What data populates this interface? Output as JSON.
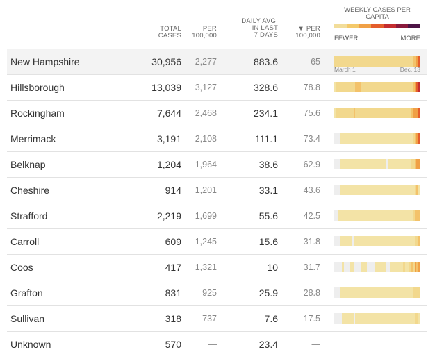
{
  "header": {
    "total_cases": [
      "TOTAL",
      "CASES"
    ],
    "per_100k": [
      "PER",
      "100,000"
    ],
    "daily_avg": [
      "DAILY AVG.",
      "IN LAST",
      "7 DAYS"
    ],
    "per_100k_sorted": [
      "▼ PER",
      "100,000"
    ]
  },
  "legend": {
    "title": [
      "WEEKLY CASES PER",
      "CAPITA"
    ],
    "fewer": "FEWER",
    "more": "MORE",
    "colors": [
      "#f2dd9a",
      "#f4c96a",
      "#f0a046",
      "#e45d2b",
      "#c42d2f",
      "#8a1a3c",
      "#4d1546"
    ]
  },
  "axis": {
    "start": "March 1",
    "end": "Dec. 13"
  },
  "rows": [
    {
      "name": "New Hampshire",
      "total": "30,956",
      "per100k": "2,277",
      "daily": "883.6",
      "per100k_daily": "65",
      "spark": [
        2,
        2,
        2,
        2,
        2,
        2,
        2,
        2,
        2,
        2,
        2,
        2,
        2,
        2,
        2,
        2,
        2,
        2,
        2,
        2,
        2,
        2,
        2,
        2,
        2,
        2,
        2,
        2,
        2,
        2,
        2,
        2,
        2,
        2,
        2,
        2,
        2,
        2,
        2,
        2,
        2,
        3,
        3,
        4,
        5
      ]
    },
    {
      "name": "Hillsborough",
      "total": "13,039",
      "per100k": "3,127",
      "daily": "328.6",
      "per100k_daily": "78.8",
      "spark": [
        1,
        2,
        2,
        2,
        2,
        2,
        2,
        2,
        2,
        2,
        2,
        3,
        3,
        3,
        2,
        2,
        2,
        2,
        2,
        2,
        2,
        2,
        2,
        2,
        2,
        2,
        2,
        2,
        2,
        2,
        2,
        2,
        2,
        2,
        2,
        2,
        2,
        2,
        2,
        2,
        2,
        3,
        4,
        5,
        6
      ]
    },
    {
      "name": "Rockingham",
      "total": "7,644",
      "per100k": "2,468",
      "daily": "234.1",
      "per100k_daily": "75.6",
      "spark": [
        1,
        2,
        2,
        2,
        2,
        2,
        2,
        2,
        2,
        2,
        3,
        2,
        2,
        2,
        2,
        2,
        2,
        2,
        2,
        2,
        2,
        2,
        2,
        2,
        2,
        2,
        2,
        2,
        2,
        2,
        2,
        2,
        2,
        2,
        2,
        2,
        2,
        2,
        2,
        2,
        3,
        4,
        4,
        4,
        5
      ]
    },
    {
      "name": "Merrimack",
      "total": "3,191",
      "per100k": "2,108",
      "daily": "111.1",
      "per100k_daily": "73.4",
      "spark": [
        0,
        0,
        0,
        1,
        1,
        1,
        1,
        1,
        1,
        1,
        1,
        1,
        1,
        1,
        1,
        1,
        1,
        1,
        1,
        1,
        1,
        1,
        1,
        1,
        1,
        1,
        1,
        1,
        1,
        1,
        1,
        1,
        1,
        1,
        1,
        1,
        1,
        1,
        1,
        1,
        1,
        2,
        3,
        4,
        5
      ]
    },
    {
      "name": "Belknap",
      "total": "1,204",
      "per100k": "1,964",
      "daily": "38.6",
      "per100k_daily": "62.9",
      "spark": [
        0,
        0,
        0,
        1,
        1,
        1,
        1,
        1,
        1,
        1,
        1,
        1,
        1,
        1,
        1,
        1,
        1,
        1,
        1,
        1,
        1,
        1,
        1,
        1,
        1,
        1,
        1,
        0,
        1,
        1,
        1,
        1,
        1,
        1,
        1,
        1,
        1,
        1,
        1,
        1,
        2,
        2,
        3,
        4,
        4
      ]
    },
    {
      "name": "Cheshire",
      "total": "914",
      "per100k": "1,201",
      "daily": "33.1",
      "per100k_daily": "43.6",
      "spark": [
        0,
        0,
        0,
        1,
        1,
        1,
        1,
        1,
        1,
        1,
        1,
        1,
        1,
        1,
        1,
        1,
        1,
        1,
        1,
        1,
        1,
        1,
        1,
        1,
        1,
        1,
        1,
        1,
        1,
        1,
        1,
        1,
        1,
        1,
        1,
        1,
        1,
        1,
        1,
        1,
        1,
        1,
        2,
        3,
        1
      ]
    },
    {
      "name": "Strafford",
      "total": "2,219",
      "per100k": "1,699",
      "daily": "55.6",
      "per100k_daily": "42.5",
      "spark": [
        0,
        0,
        1,
        1,
        1,
        1,
        1,
        1,
        1,
        1,
        1,
        1,
        1,
        1,
        1,
        1,
        1,
        1,
        1,
        1,
        1,
        1,
        1,
        1,
        1,
        1,
        1,
        1,
        1,
        1,
        1,
        1,
        1,
        1,
        1,
        1,
        1,
        1,
        1,
        1,
        1,
        2,
        3,
        3,
        3
      ]
    },
    {
      "name": "Carroll",
      "total": "609",
      "per100k": "1,245",
      "daily": "15.6",
      "per100k_daily": "31.8",
      "spark": [
        0,
        0,
        0,
        1,
        1,
        1,
        1,
        1,
        1,
        0,
        1,
        1,
        1,
        1,
        1,
        1,
        1,
        1,
        1,
        1,
        1,
        1,
        1,
        1,
        1,
        1,
        1,
        1,
        1,
        1,
        1,
        1,
        1,
        1,
        1,
        1,
        1,
        1,
        1,
        1,
        1,
        1,
        2,
        2,
        3
      ]
    },
    {
      "name": "Coos",
      "total": "417",
      "per100k": "1,321",
      "daily": "10",
      "per100k_daily": "31.7",
      "spark": [
        0,
        0,
        0,
        0,
        1,
        0,
        0,
        0,
        1,
        1,
        0,
        0,
        0,
        0,
        1,
        1,
        1,
        0,
        0,
        0,
        0,
        1,
        1,
        1,
        1,
        1,
        1,
        0,
        0,
        1,
        1,
        1,
        1,
        1,
        1,
        1,
        2,
        1,
        1,
        2,
        3,
        2,
        4,
        3,
        4
      ]
    },
    {
      "name": "Grafton",
      "total": "831",
      "per100k": "925",
      "daily": "25.9",
      "per100k_daily": "28.8",
      "spark": [
        0,
        0,
        0,
        1,
        1,
        1,
        1,
        1,
        1,
        1,
        1,
        1,
        1,
        1,
        1,
        1,
        1,
        1,
        1,
        1,
        1,
        1,
        1,
        1,
        1,
        1,
        1,
        1,
        1,
        1,
        1,
        1,
        1,
        1,
        1,
        1,
        1,
        1,
        1,
        1,
        1,
        2,
        2,
        2,
        2
      ]
    },
    {
      "name": "Sullivan",
      "total": "318",
      "per100k": "737",
      "daily": "7.6",
      "per100k_daily": "17.5",
      "spark": [
        0,
        0,
        0,
        0,
        1,
        1,
        1,
        1,
        1,
        1,
        0,
        1,
        1,
        1,
        1,
        1,
        1,
        1,
        1,
        1,
        1,
        1,
        1,
        1,
        1,
        1,
        1,
        1,
        1,
        1,
        1,
        1,
        1,
        1,
        1,
        1,
        1,
        1,
        1,
        1,
        1,
        1,
        2,
        2,
        1
      ]
    },
    {
      "name": "Unknown",
      "total": "570",
      "per100k": "—",
      "daily": "23.4",
      "per100k_daily": "—",
      "spark": []
    }
  ],
  "spark_colors": [
    "#eeeeee",
    "#f3e3a6",
    "#f2d88d",
    "#f3c26a",
    "#f0a046",
    "#e45d2b",
    "#c42d2f"
  ]
}
